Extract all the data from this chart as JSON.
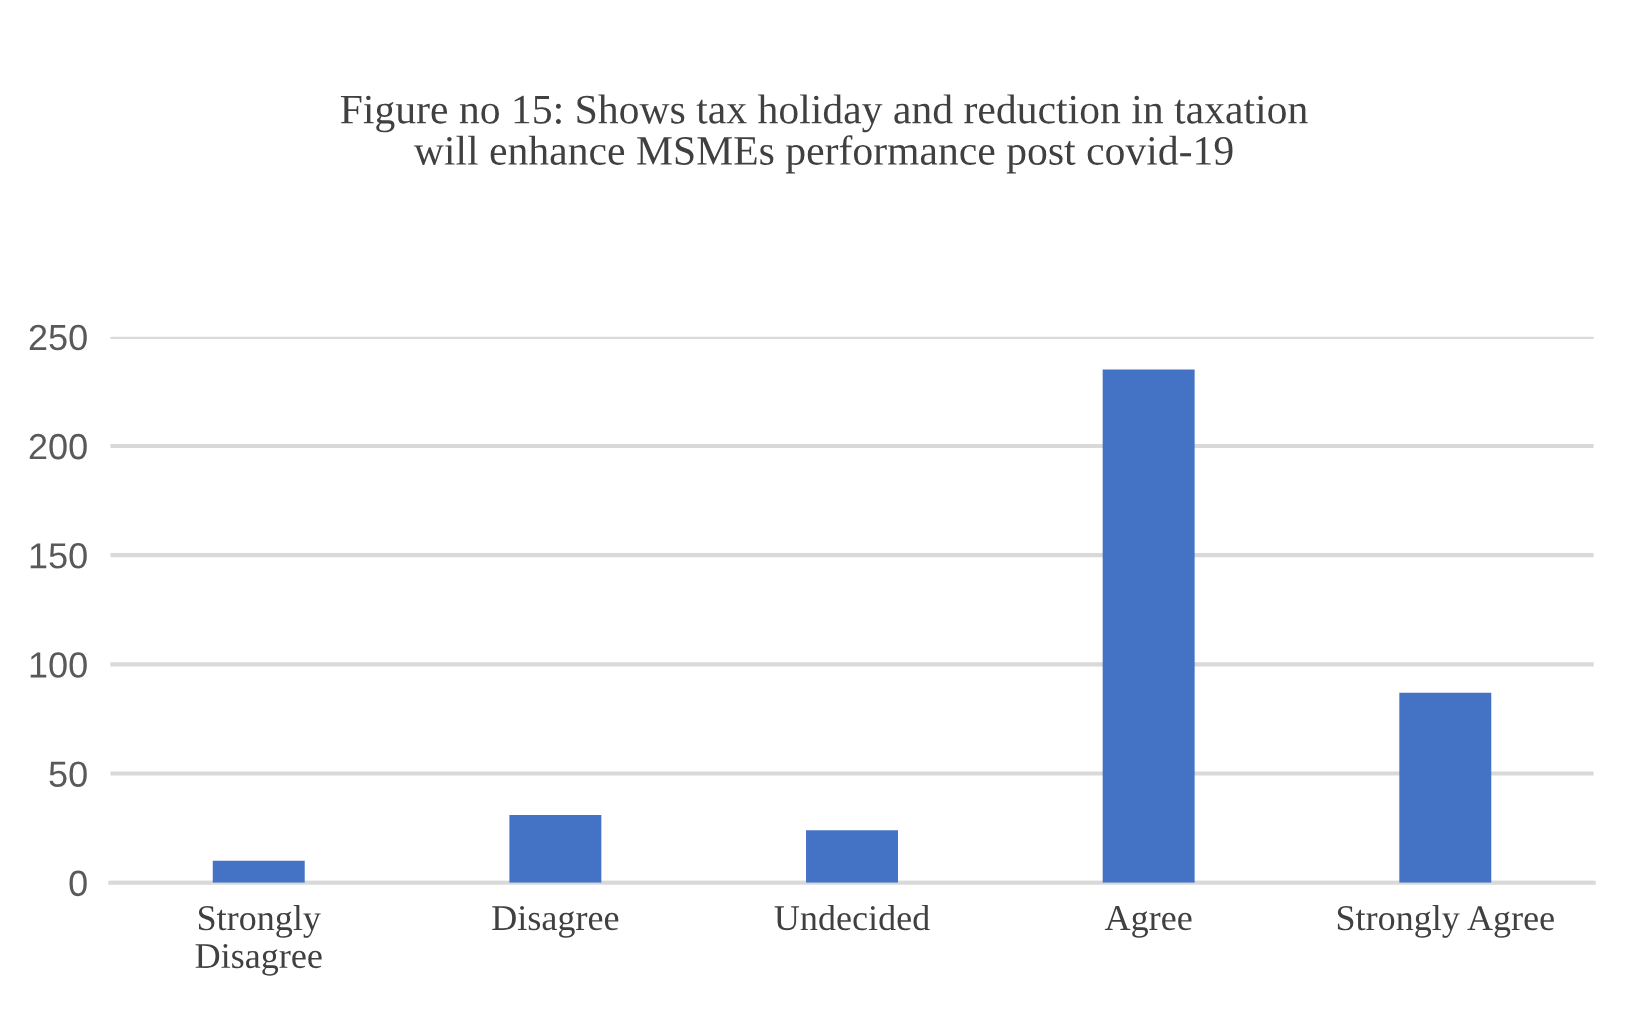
{
  "chart_data": {
    "type": "bar",
    "title": "Figure no 15: Shows tax holiday and reduction in taxation\nwill enhance MSMEs performance post covid-19",
    "categories": [
      "Strongly\nDisagree",
      "Disagree",
      "Undecided",
      "Agree",
      "Strongly Agree"
    ],
    "values": [
      10,
      31,
      24,
      235,
      87
    ],
    "color": "#4472c4",
    "ylim": [
      0,
      250
    ],
    "yticks": [
      0,
      50,
      100,
      150,
      200,
      250
    ],
    "grid": "y"
  }
}
